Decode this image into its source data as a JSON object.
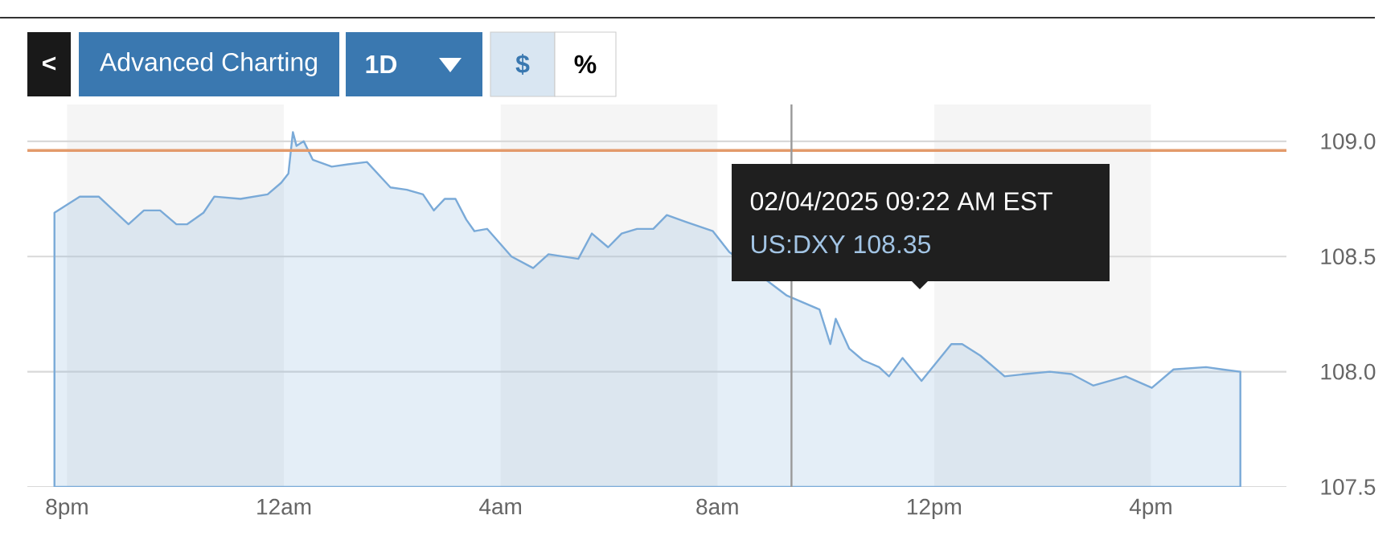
{
  "chart_data": {
    "type": "area",
    "x": [
      "2025-02-03T19:46",
      "2025-02-03T20:14",
      "2025-02-03T20:35",
      "2025-02-03T21:08",
      "2025-02-03T21:25",
      "2025-02-03T21:43",
      "2025-02-03T22:01",
      "2025-02-03T22:13",
      "2025-02-03T22:31",
      "2025-02-03T22:43",
      "2025-02-03T23:12",
      "2025-02-03T23:42",
      "2025-02-03T23:57",
      "2025-02-04T00:05",
      "2025-02-04T00:10",
      "2025-02-04T00:14",
      "2025-02-04T00:22",
      "2025-02-04T00:32",
      "2025-02-04T00:53",
      "2025-02-04T01:11",
      "2025-02-04T01:32",
      "2025-02-04T01:58",
      "2025-02-04T02:16",
      "2025-02-04T02:34",
      "2025-02-04T02:46",
      "2025-02-04T02:58",
      "2025-02-04T03:10",
      "2025-02-04T03:22",
      "2025-02-04T03:31",
      "2025-02-04T03:45",
      "2025-02-04T04:12",
      "2025-02-04T04:36",
      "2025-02-04T04:53",
      "2025-02-04T05:26",
      "2025-02-04T05:41",
      "2025-02-04T05:59",
      "2025-02-04T06:14",
      "2025-02-04T06:31",
      "2025-02-04T06:49",
      "2025-02-04T07:04",
      "2025-02-04T07:25",
      "2025-02-04T07:55",
      "2025-02-04T08:13",
      "2025-02-04T08:48",
      "2025-02-04T09:17",
      "2025-02-04T09:29",
      "2025-02-04T09:53",
      "2025-02-04T10:05",
      "2025-02-04T10:11",
      "2025-02-04T10:26",
      "2025-02-04T10:41",
      "2025-02-04T10:59",
      "2025-02-04T11:10",
      "2025-02-04T11:25",
      "2025-02-04T11:46",
      "2025-02-04T12:19",
      "2025-02-04T12:31",
      "2025-02-04T12:51",
      "2025-02-04T13:18",
      "2025-02-04T13:41",
      "2025-02-04T14:08",
      "2025-02-04T14:32",
      "2025-02-04T14:56",
      "2025-02-04T15:32",
      "2025-02-04T16:01",
      "2025-02-04T16:25",
      "2025-02-04T17:01",
      "2025-02-04T17:19",
      "2025-02-04T17:39"
    ],
    "series": [
      {
        "color": "#7aaad8",
        "values": [
          108.69,
          108.76,
          108.76,
          108.64,
          108.7,
          108.7,
          108.64,
          108.64,
          108.69,
          108.76,
          108.75,
          108.77,
          108.82,
          108.86,
          109.04,
          108.98,
          109.0,
          108.92,
          108.89,
          108.9,
          108.91,
          108.8,
          108.79,
          108.77,
          108.7,
          108.75,
          108.75,
          108.66,
          108.61,
          108.62,
          108.5,
          108.45,
          108.51,
          108.49,
          108.6,
          108.54,
          108.6,
          108.62,
          108.62,
          108.68,
          108.65,
          108.61,
          108.52,
          null,
          108.33,
          null,
          108.27,
          108.12,
          108.23,
          108.1,
          108.05,
          108.02,
          107.98,
          108.06,
          107.96,
          108.12,
          108.12,
          108.07,
          107.98,
          107.99,
          108.0,
          107.99,
          107.94,
          107.98,
          107.93,
          108.01,
          108.02,
          108.01,
          108.0
        ]
      }
    ],
    "xlim": [
      "2025-02-03T19:16",
      "2025-02-04T18:30"
    ],
    "xticks": [
      {
        "value": "2025-02-03T20:00",
        "label": "8pm"
      },
      {
        "value": "2025-02-04T00:00",
        "label": "12am"
      },
      {
        "value": "2025-02-04T04:00",
        "label": "4am"
      },
      {
        "value": "2025-02-04T08:00",
        "label": "8am"
      },
      {
        "value": "2025-02-04T12:00",
        "label": "12pm"
      },
      {
        "value": "2025-02-04T16:00",
        "label": "4pm"
      }
    ],
    "ylim": [
      107.5,
      109.16
    ],
    "yticks": [
      107.5,
      {
        "value": 108,
        "label": "108.0"
      },
      108.5,
      {
        "value": 109,
        "label": "109.0"
      }
    ],
    "grid": "y",
    "marker": "none",
    "bands": [
      {
        "axis": "x",
        "from": "2025-02-03T20:00",
        "to": "2025-02-04T00:00",
        "color": "#f5f5f5"
      },
      {
        "axis": "x",
        "from": "2025-02-04T04:00",
        "to": "2025-02-04T08:00",
        "color": "#f5f5f5"
      },
      {
        "axis": "x",
        "from": "2025-02-04T12:00",
        "to": "2025-02-04T16:00",
        "color": "#f5f5f5"
      }
    ],
    "ref_lines": [
      {
        "axis": "y",
        "value": 108.96,
        "color": "#e39a6b"
      },
      {
        "axis": "x",
        "value": "2025-02-04T09:22",
        "color": "#999999"
      }
    ],
    "annotations": [
      "<",
      "Advanced Charting",
      "1D",
      "$",
      "%",
      "02/04/2025 09:22 AM EST",
      "US:DXY   108.35"
    ]
  }
}
